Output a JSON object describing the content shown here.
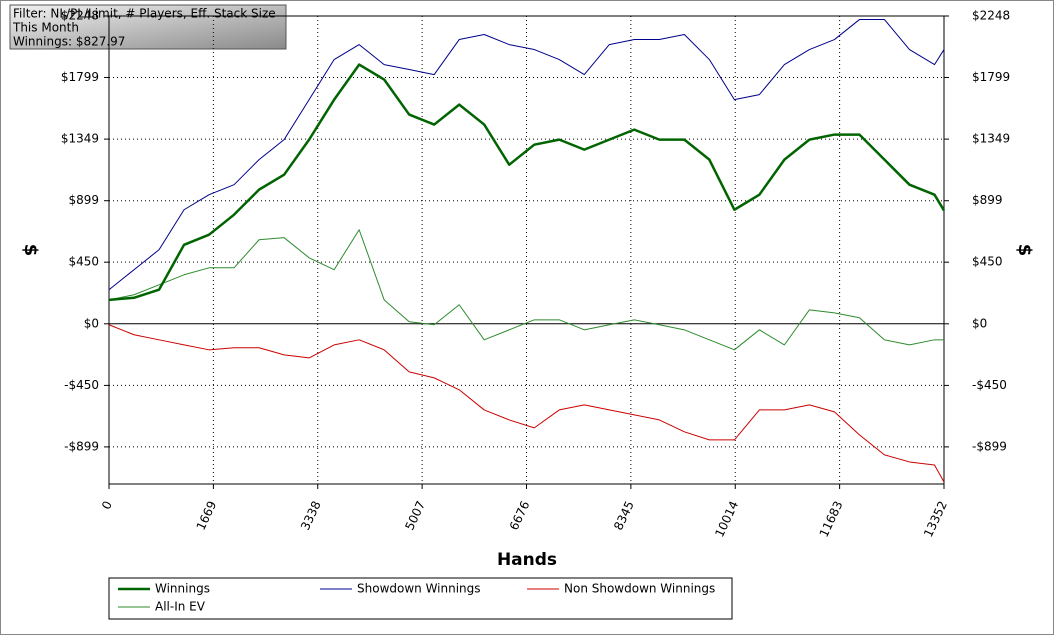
{
  "chart_data": {
    "type": "line",
    "annotations": [
      "Filter: NL/PL/Limit, # Players, Eff. Stack Size",
      "This Month",
      "Winnings: $827.97"
    ],
    "xlabel": "Hands",
    "ylabel": "$",
    "x": [
      0,
      400,
      800,
      1200,
      1600,
      2000,
      2400,
      2800,
      3200,
      3600,
      4000,
      4400,
      4800,
      5200,
      5600,
      6000,
      6400,
      6800,
      7200,
      7600,
      8000,
      8400,
      8800,
      9200,
      9600,
      10000,
      10400,
      10800,
      11200,
      11600,
      12000,
      12400,
      12800,
      13200,
      13352
    ],
    "series": [
      {
        "name": "Winnings",
        "color": "#006400",
        "values": [
          175,
          190,
          249,
          577,
          651,
          797,
          980,
          1089,
          1345,
          1637,
          1893,
          1784,
          1528,
          1455,
          1601,
          1455,
          1162,
          1308,
          1345,
          1272,
          1345,
          1418,
          1345,
          1345,
          1199,
          833,
          943,
          1199,
          1345,
          1382,
          1382,
          1199,
          1016,
          943,
          828
        ]
      },
      {
        "name": "Showdown Winnings",
        "color": "#00008b",
        "values": [
          249,
          395,
          541,
          833,
          943,
          1016,
          1199,
          1345,
          1637,
          1930,
          2039,
          1893,
          1857,
          1820,
          2076,
          2113,
          2039,
          2003,
          1930,
          1820,
          2039,
          2076,
          2076,
          2113,
          1930,
          1637,
          1674,
          1893,
          2003,
          2076,
          2222,
          2222,
          2003,
          1893,
          2003
        ]
      },
      {
        "name": "Non Showdown Winnings",
        "color": "#cc0000",
        "values": [
          -7,
          -80,
          -117,
          -154,
          -190,
          -175,
          -175,
          -227,
          -249,
          -154,
          -117,
          -190,
          -351,
          -395,
          -482,
          -629,
          -702,
          -760,
          -629,
          -592,
          -629,
          -665,
          -702,
          -789,
          -848,
          -848,
          -629,
          -629,
          -592,
          -643,
          -811,
          -957,
          -1009,
          -1031,
          -1155
        ]
      },
      {
        "name": "All-In EV",
        "color": "#2e8b2e",
        "values": [
          175,
          212,
          285,
          358,
          409,
          409,
          614,
          629,
          482,
          395,
          687,
          175,
          15,
          -7,
          139,
          -117,
          -44,
          29,
          29,
          -44,
          -7,
          29,
          -7,
          -44,
          -117,
          -190,
          -44,
          -154,
          102,
          80,
          44,
          -117,
          -154,
          -117,
          -117
        ]
      }
    ],
    "xlim": [
      0,
      13352
    ],
    "xticks": [
      0,
      1669,
      3338,
      5007,
      6676,
      8345,
      10014,
      11683,
      13352
    ],
    "ylim": [
      -1170,
      2248
    ],
    "yticks": [
      {
        "value": -899,
        "label": "-$899"
      },
      {
        "value": -450,
        "label": "-$450"
      },
      {
        "value": 0,
        "label": "$0"
      },
      {
        "value": 450,
        "label": "$450"
      },
      {
        "value": 899,
        "label": "$899"
      },
      {
        "value": 1349,
        "label": "$1349"
      },
      {
        "value": 1799,
        "label": "$1799"
      },
      {
        "value": 2248,
        "label": "$2248"
      }
    ],
    "grid": true
  }
}
